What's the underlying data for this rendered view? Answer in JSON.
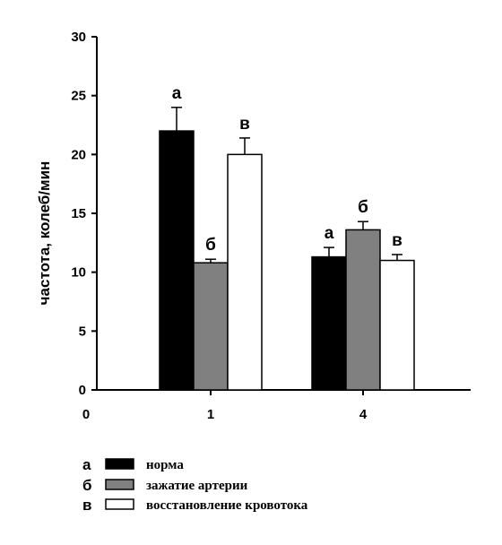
{
  "chart_data": {
    "type": "bar",
    "ylabel": "частота, колеб/мин",
    "ylim": [
      0,
      30
    ],
    "yticks": [
      "0",
      "5",
      "10",
      "15",
      "20",
      "25",
      "30"
    ],
    "x_origin_label": "0",
    "categories": [
      "1",
      "4"
    ],
    "series": [
      {
        "name": "норма",
        "marker": "а",
        "color": "#000000",
        "values": [
          22.0,
          11.3
        ],
        "errors": [
          2.0,
          0.8
        ]
      },
      {
        "name": "зажатие артерии",
        "marker": "б",
        "color": "#808080",
        "values": [
          10.8,
          13.6
        ],
        "errors": [
          0.3,
          0.7
        ]
      },
      {
        "name": "восстановление кровотока",
        "marker": "в",
        "color": "#ffffff",
        "values": [
          20.0,
          11.0
        ],
        "errors": [
          1.4,
          0.5
        ]
      }
    ],
    "bar_labels": [
      {
        "category": "1",
        "series": 0,
        "text": "а"
      },
      {
        "category": "1",
        "series": 1,
        "text": "б"
      },
      {
        "category": "1",
        "series": 2,
        "text": "в"
      },
      {
        "category": "4",
        "series": 0,
        "text": "а"
      },
      {
        "category": "4",
        "series": 1,
        "text": "б"
      },
      {
        "category": "4",
        "series": 2,
        "text": "в"
      }
    ],
    "legend_position": "bottom-left",
    "grid": false
  }
}
